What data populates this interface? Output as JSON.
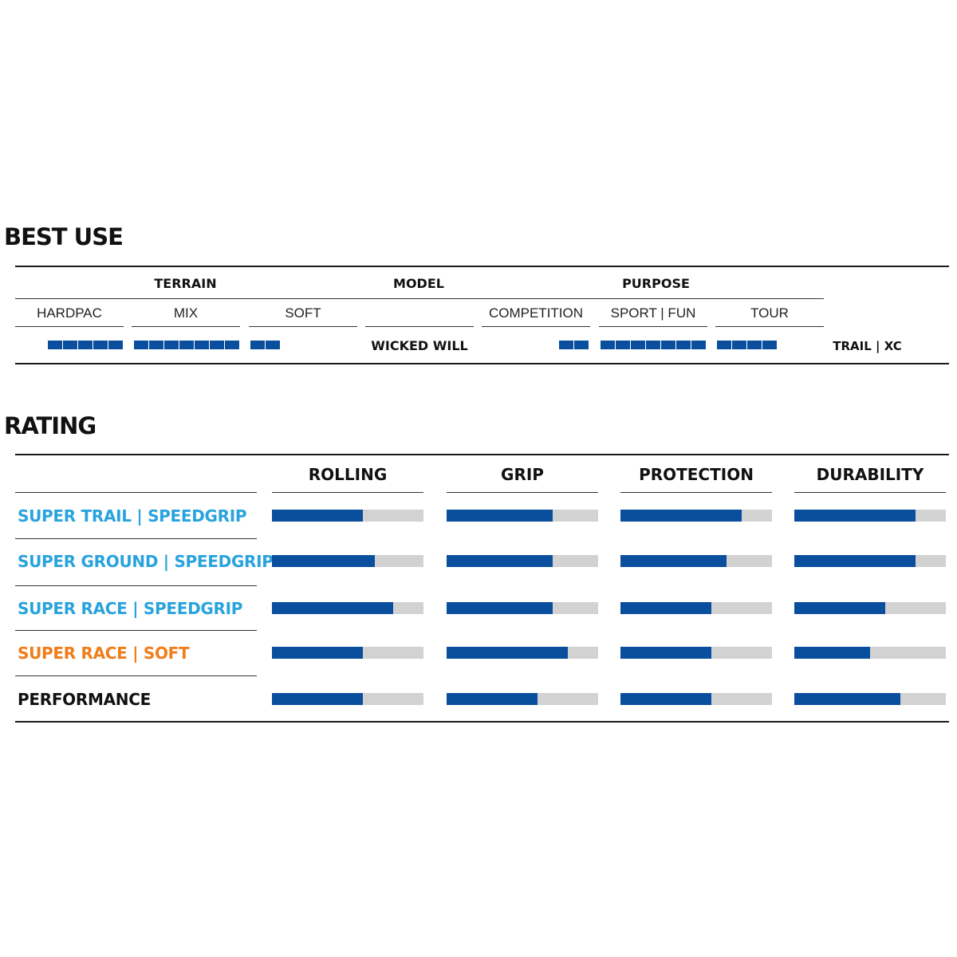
{
  "best_use": {
    "title": "BEST USE",
    "groups": {
      "terrain": "TERRAIN",
      "model": "MODEL",
      "purpose": "PURPOSE"
    },
    "columns": [
      "HARDPAC",
      "MIX",
      "SOFT",
      "",
      "COMPETITION",
      "SPORT | FUN",
      "TOUR"
    ],
    "row": {
      "model": "WICKED WILL",
      "terrain_squares": [
        5,
        7,
        2
      ],
      "purpose_squares": [
        2,
        7,
        4
      ],
      "category": "TRAIL | XC"
    }
  },
  "rating": {
    "title": "RATING",
    "categories": [
      "ROLLING",
      "GRIP",
      "PROTECTION",
      "DURABILITY"
    ],
    "rows": [
      {
        "label": "SUPER TRAIL | SPEEDGRIP",
        "color": "#29a3dd",
        "values": [
          0.6,
          0.7,
          0.8,
          0.8
        ]
      },
      {
        "label": "SUPER GROUND | SPEEDGRIP",
        "color": "#29a3dd",
        "values": [
          0.68,
          0.7,
          0.7,
          0.8
        ]
      },
      {
        "label": "SUPER RACE | SPEEDGRIP",
        "color": "#29a3dd",
        "values": [
          0.8,
          0.7,
          0.6,
          0.6
        ]
      },
      {
        "label": "SUPER RACE | SOFT",
        "color": "#f07d1a",
        "values": [
          0.6,
          0.8,
          0.6,
          0.5
        ]
      },
      {
        "label": "PERFORMANCE",
        "color": "#111111",
        "values": [
          0.6,
          0.6,
          0.6,
          0.7
        ]
      }
    ],
    "bar_color": "#0a4f9e",
    "track_color": "#d2d2d2"
  }
}
